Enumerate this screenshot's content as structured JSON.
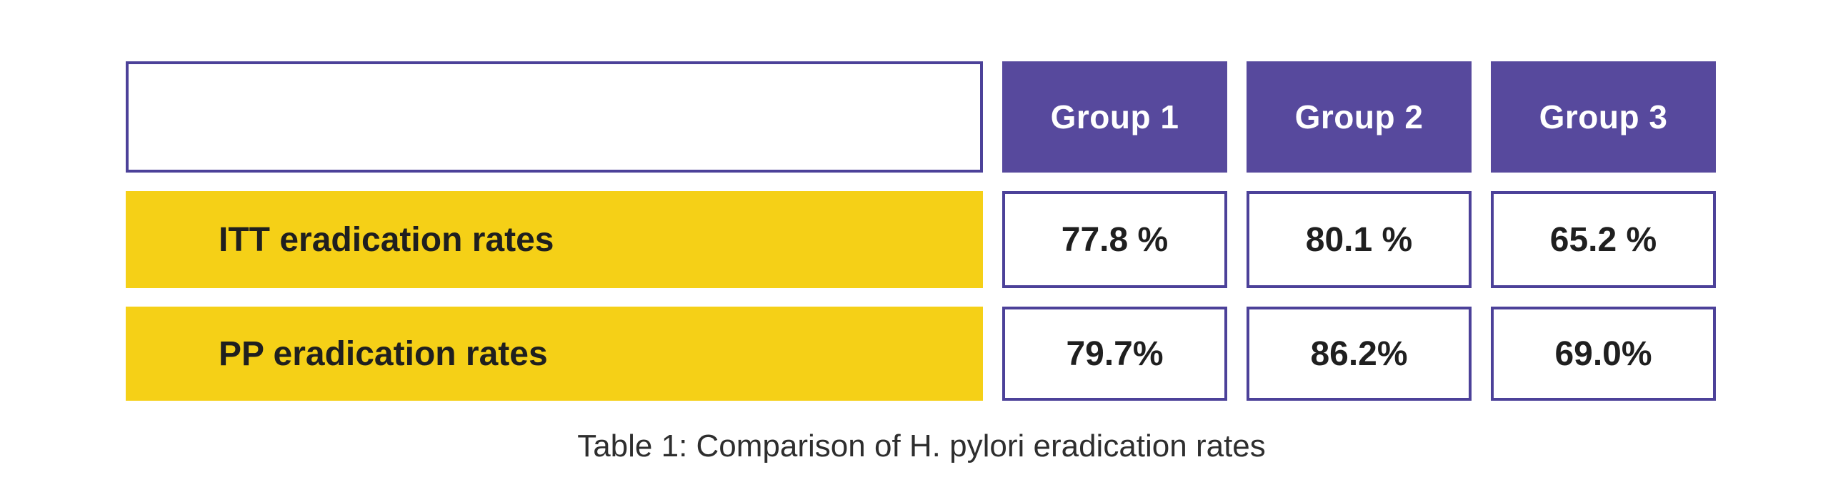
{
  "figure": {
    "corner_label": "",
    "columns": [
      "Group 1",
      "Group 2",
      "Group 3"
    ],
    "rows": [
      {
        "label": "ITT eradication rates",
        "values": [
          "77.8 %",
          "80.1 %",
          "65.2 %"
        ]
      },
      {
        "label": "PP eradication rates",
        "values": [
          "79.7%",
          "86.2%",
          "69.0%"
        ]
      }
    ],
    "caption": "Table 1: Comparison of H. pylori eradication rates"
  },
  "chart_data": {
    "type": "table",
    "title": "Table 1: Comparison of H. pylori eradication rates",
    "columns": [
      "",
      "Group 1",
      "Group 2",
      "Group 3"
    ],
    "rows": [
      [
        "ITT eradication rates",
        "77.8 %",
        "80.1 %",
        "65.2 %"
      ],
      [
        "PP eradication rates",
        "79.7%",
        "86.2%",
        "69.0%"
      ]
    ],
    "categories": [
      "Group 1",
      "Group 2",
      "Group 3"
    ],
    "series": [
      {
        "name": "ITT eradication rates",
        "values": [
          77.8,
          80.1,
          65.2
        ]
      },
      {
        "name": "PP eradication rates",
        "values": [
          79.7,
          86.2,
          69.0
        ]
      }
    ],
    "unit": "%"
  },
  "colors": {
    "header_purple": "#57499D",
    "border_purple": "#4C4199",
    "row_yellow": "#F5D017",
    "text_dark": "#1F1F1F",
    "caption_text": "#2E2E2E"
  }
}
